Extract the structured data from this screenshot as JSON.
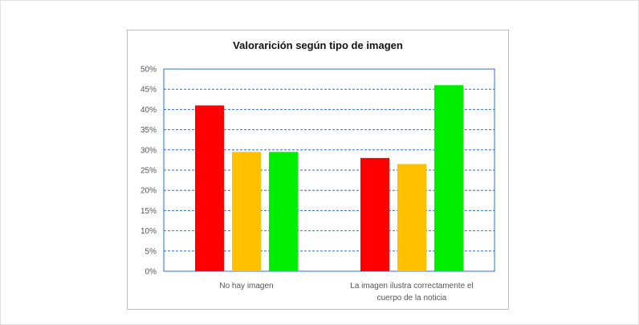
{
  "chart_data": {
    "type": "bar",
    "title": "Valorarición según tipo de imagen",
    "xlabel": "",
    "ylabel": "",
    "categories": [
      [
        "No hay imagen"
      ],
      [
        "La imagen ilustra correctamente el",
        "cuerpo de la noticia"
      ]
    ],
    "series": [
      {
        "color": "#ff0000",
        "values": [
          41,
          28
        ]
      },
      {
        "color": "#ffc000",
        "values": [
          29.5,
          26.5
        ]
      },
      {
        "color": "#00ee00",
        "values": [
          29.5,
          46
        ]
      }
    ],
    "ylim": [
      0,
      50
    ],
    "yticks": [
      0,
      5,
      10,
      15,
      20,
      25,
      30,
      35,
      40,
      45,
      50
    ],
    "ytick_labels": [
      "0%",
      "5%",
      "10%",
      "15%",
      "20%",
      "25%",
      "30%",
      "35%",
      "40%",
      "45%",
      "50%"
    ],
    "grid": true,
    "grid_color": "#2f6fd6",
    "legend": "none"
  }
}
